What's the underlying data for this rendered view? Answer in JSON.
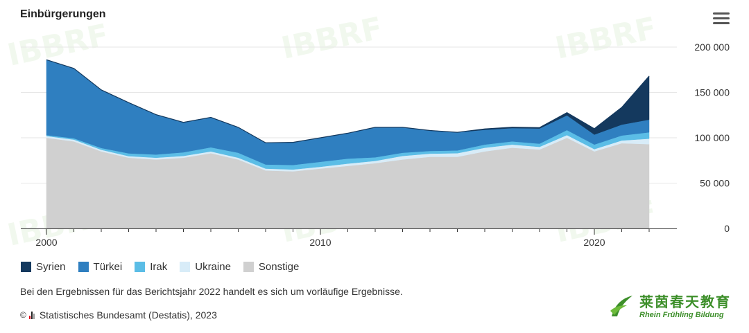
{
  "header": {
    "title": "Einbürgerungen",
    "menu_icon": "hamburger-menu-icon"
  },
  "chart_data": {
    "type": "area",
    "stacked": true,
    "title": "Einbürgerungen",
    "x": [
      2000,
      2001,
      2002,
      2003,
      2004,
      2005,
      2006,
      2007,
      2008,
      2009,
      2010,
      2011,
      2012,
      2013,
      2014,
      2015,
      2016,
      2017,
      2018,
      2019,
      2020,
      2021,
      2022
    ],
    "series": [
      {
        "name": "Sonstige",
        "color": "#d0d0d0",
        "values": [
          100000,
          96000,
          85000,
          78000,
          76000,
          78000,
          83000,
          76000,
          64000,
          63000,
          66000,
          69000,
          72000,
          76000,
          79000,
          79000,
          85000,
          89000,
          87000,
          100000,
          85000,
          94000,
          93000
        ]
      },
      {
        "name": "Ukraine",
        "color": "#d8ecf8",
        "values": [
          2000,
          2000,
          1800,
          1800,
          2000,
          2000,
          2000,
          2000,
          2000,
          2000,
          2000,
          2500,
          2500,
          4000,
          3500,
          4000,
          4000,
          3500,
          3000,
          3000,
          2500,
          3000,
          6000
        ]
      },
      {
        "name": "Irak",
        "color": "#5bbde6",
        "values": [
          1000,
          1500,
          2000,
          3000,
          3500,
          4000,
          4500,
          5500,
          4500,
          5000,
          5500,
          5500,
          4000,
          3500,
          3000,
          3000,
          3500,
          3500,
          3500,
          5500,
          5000,
          5500,
          7000
        ]
      },
      {
        "name": "Türkei",
        "color": "#2f7fc0",
        "values": [
          83000,
          77000,
          64000,
          56000,
          44000,
          33000,
          33000,
          28000,
          24000,
          25000,
          26500,
          28000,
          33000,
          28000,
          22500,
          20000,
          16300,
          14700,
          16700,
          16200,
          11000,
          12000,
          14000
        ]
      },
      {
        "name": "Syrien",
        "color": "#14395e",
        "values": [
          0,
          0,
          0,
          0,
          0,
          0,
          0,
          0,
          0,
          0,
          0,
          0,
          0,
          0,
          0,
          0,
          1000,
          1000,
          1000,
          3000,
          6500,
          19000,
          48000
        ]
      }
    ],
    "x_ticks": [
      "2000",
      "2010",
      "2020"
    ],
    "y_ticks": [
      "0",
      "50 000",
      "100 000",
      "150 000",
      "200 000"
    ],
    "ylim": [
      0,
      200000
    ],
    "xlim": [
      2000,
      2022
    ],
    "grid": true,
    "y_axis_position": "right",
    "legend_position": "bottom-left"
  },
  "legend": [
    {
      "label": "Syrien",
      "color": "#14395e"
    },
    {
      "label": "Türkei",
      "color": "#2f7fc0"
    },
    {
      "label": "Irak",
      "color": "#5bbde6"
    },
    {
      "label": "Ukraine",
      "color": "#d8ecf8"
    },
    {
      "label": "Sonstige",
      "color": "#d0d0d0"
    }
  ],
  "note": "Bei den Ergebnissen für das Berichtsjahr 2022 handelt es sich um vorläufige Ergebnisse.",
  "source": {
    "copyright": "©",
    "text": "Statistisches Bundesamt (Destatis), 2023"
  },
  "branding": {
    "cn": "莱茵春天教育",
    "en": "Rhein Frühling Bildung",
    "watermark": "IBBRF"
  }
}
